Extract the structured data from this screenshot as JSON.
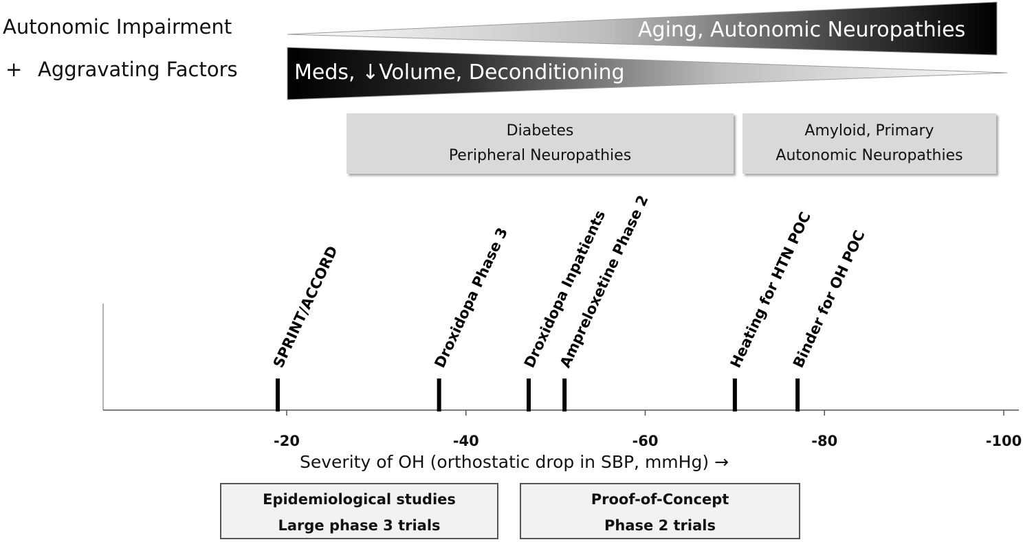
{
  "labels": {
    "autonomic_impairment": "Autonomic Impairment",
    "plus": "+",
    "aggravating_factors": "Aggravating Factors"
  },
  "wedges": {
    "top": "Aging, Autonomic Neuropathies",
    "bottom": "Meds, ↓Volume, Deconditioning"
  },
  "boxes": {
    "diabetes": [
      "Diabetes",
      "Peripheral Neuropathies"
    ],
    "amyloid": [
      "Amyloid, Primary",
      "Autonomic Neuropathies"
    ]
  },
  "axis": {
    "xlabel": "Severity of OH (orthostatic drop in SBP, mmHg) →",
    "ticks": [
      -20,
      -40,
      -60,
      -80,
      -100
    ],
    "tick_labels": [
      "-20",
      "-40",
      "-60",
      "-80",
      "-100"
    ],
    "range": [
      0,
      -100
    ]
  },
  "studies": [
    {
      "name": "SPRINT/ACCORD",
      "value": -19
    },
    {
      "name": "Droxidopa Phase 3",
      "value": -37
    },
    {
      "name": "Droxidopa Inpatients",
      "value": -47
    },
    {
      "name": "Ampreloxetine Phase 2",
      "value": -51
    },
    {
      "name": "Heating for HTN POC",
      "value": -70
    },
    {
      "name": "Binder for OH POC",
      "value": -77
    }
  ],
  "bottom_boxes": {
    "epidemiological": [
      "Epidemiological studies",
      "Large phase 3 trials"
    ],
    "proof_of_concept": [
      "Proof-of-Concept",
      "Phase 2 trials"
    ]
  }
}
